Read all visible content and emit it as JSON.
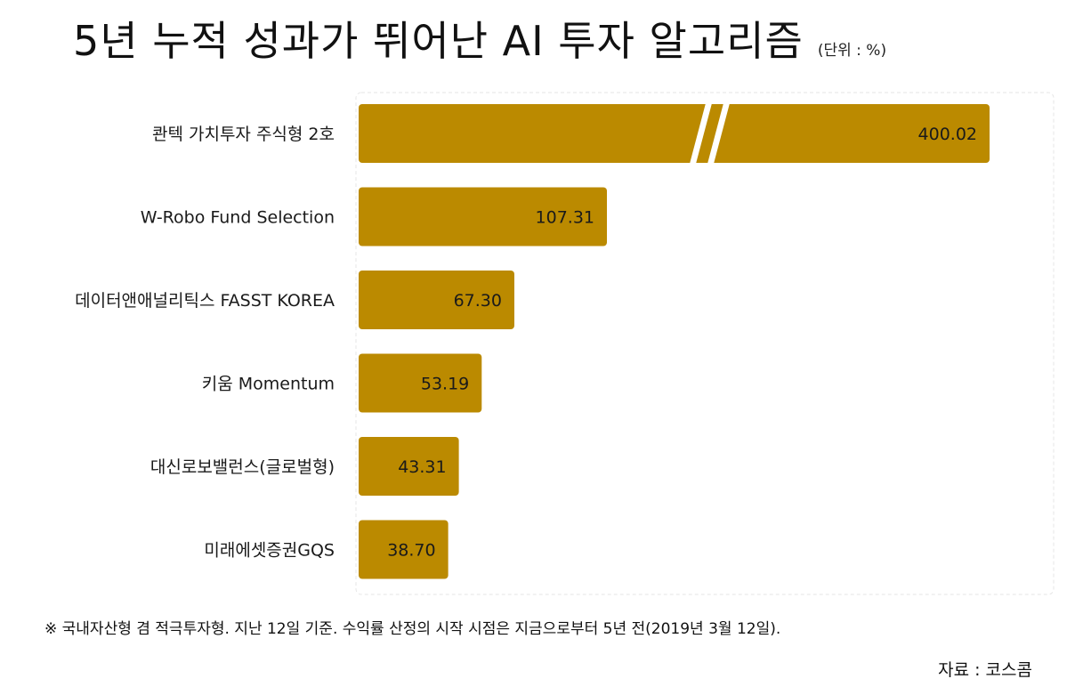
{
  "chart_data": {
    "type": "bar",
    "orientation": "horizontal",
    "title": "5년 누적 성과가 뛰어난 AI 투자 알고리즘",
    "unit": "(단위 : %)",
    "categories": [
      "콴텍 가치투자 주식형 2호",
      "W-Robo Fund Selection",
      "데이터앤애널리틱스 FASST KOREA",
      "키움 Momentum",
      "대신로보밸런스(글로벌형)",
      "미래에셋증권GQS"
    ],
    "values": [
      400.02,
      107.31,
      67.3,
      53.19,
      43.31,
      38.7
    ],
    "value_labels": [
      "400.02",
      "107.31",
      "67.30",
      "53.19",
      "43.31",
      "38.70"
    ],
    "axis_break": true,
    "xlim": [
      0,
      120
    ],
    "grid": false,
    "legend": "none",
    "bar_color": "#BB8A00",
    "footnote": "※ 국내자산형 겸 적극투자형. 지난 12일 기준. 수익률 산정의 시작 시점은 지금으로부터 5년 전(2019년 3월 12일).",
    "source": "자료 : 코스콤"
  }
}
